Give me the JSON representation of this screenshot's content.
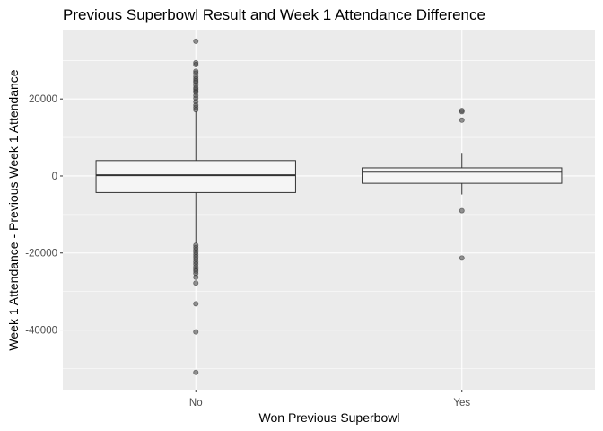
{
  "chart_data": {
    "type": "boxplot",
    "title": "Previous Superbowl Result and Week 1 Attendance Difference",
    "xlabel": "Won Previous Superbowl",
    "ylabel": "Week 1 Attendance - Previous Week 1 Attendance",
    "categories": [
      "No",
      "Yes"
    ],
    "ylim": [
      -55500,
      38000
    ],
    "yticks": [
      -40000,
      -20000,
      0,
      20000
    ],
    "ytick_labels": [
      "-40000",
      "-20000",
      "0",
      "20000"
    ],
    "grid": true,
    "legend": "none",
    "boxes": [
      {
        "category": "No",
        "whisker_low": -17500,
        "q1": -4300,
        "median": 200,
        "q3": 4000,
        "whisker_high": 16800,
        "outliers": [
          35000,
          29400,
          28900,
          27200,
          26700,
          25800,
          25200,
          24700,
          24300,
          23600,
          22900,
          22500,
          22000,
          21700,
          20900,
          20200,
          19300,
          18400,
          17800,
          17200,
          -18000,
          -18600,
          -19200,
          -19800,
          -20400,
          -21000,
          -21600,
          -22300,
          -22900,
          -23600,
          -24200,
          -24700,
          -25300,
          -26300,
          -27800,
          -33200,
          -40500,
          -51000
        ]
      },
      {
        "category": "Yes",
        "whisker_low": -4800,
        "q1": -1900,
        "median": 1100,
        "q3": 2100,
        "whisker_high": 6000,
        "outliers": [
          17000,
          16700,
          14500,
          -9000,
          -21300
        ]
      }
    ],
    "colors": {
      "panel": "#ebebeb",
      "grid_major": "#ffffff",
      "box_fill": "#f5f5f5",
      "box_stroke": "#333333",
      "point": "#4d4d4d"
    }
  }
}
